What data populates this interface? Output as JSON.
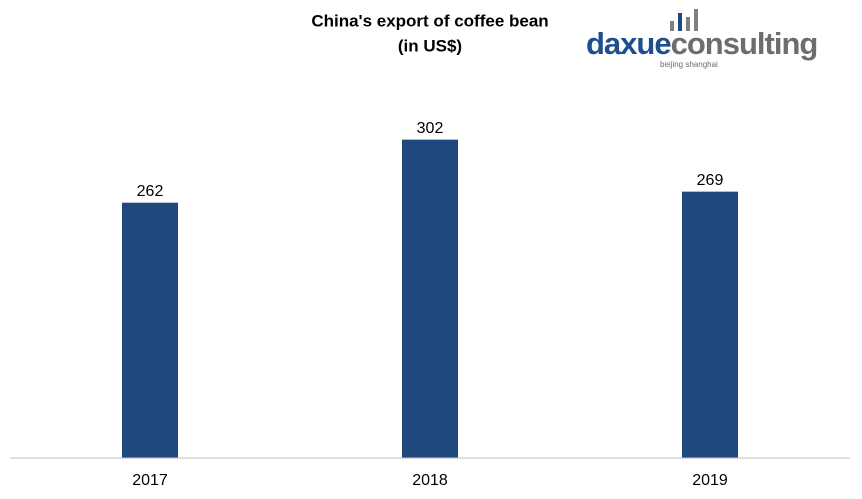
{
  "chart_data": {
    "type": "bar",
    "title": [
      "China's export of coffee bean",
      "(in US$)"
    ],
    "categories": [
      "2017",
      "2018",
      "2019"
    ],
    "values": [
      262,
      302,
      269
    ],
    "color": "#1f497d",
    "ylim": [
      100,
      350
    ],
    "grid": false
  },
  "logo": {
    "brand": [
      "daxue",
      "consulting"
    ],
    "tagline": "beijing shanghai"
  }
}
